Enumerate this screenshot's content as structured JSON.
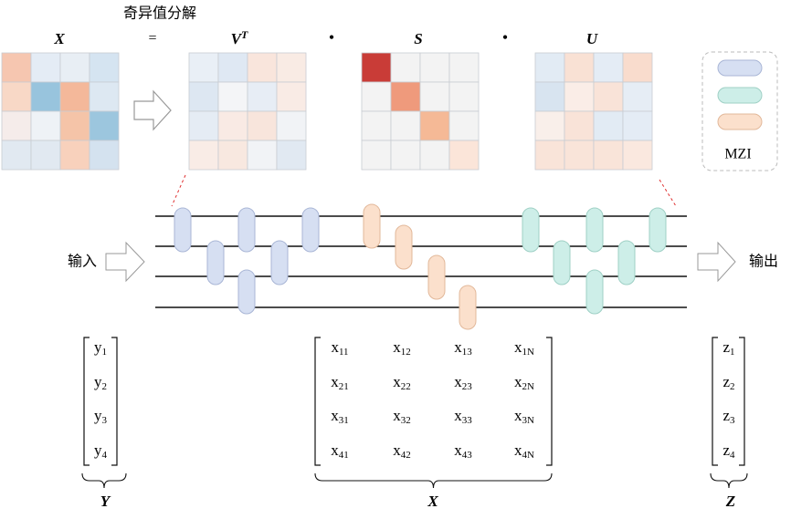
{
  "title": "奇异值分解",
  "equation": {
    "lhs": "X",
    "equals": "=",
    "vt": {
      "base": "V",
      "sup": "T"
    },
    "dot1": "•",
    "s": "S",
    "dot2": "•",
    "u": "U"
  },
  "legend": {
    "label": "MZI"
  },
  "input": "输入",
  "output": "输出",
  "vector_y": {
    "entries": [
      {
        "base": "y",
        "sub": "1"
      },
      {
        "base": "y",
        "sub": "2"
      },
      {
        "base": "y",
        "sub": "3"
      },
      {
        "base": "y",
        "sub": "4"
      }
    ],
    "label": "Y"
  },
  "matrix_x": {
    "rows": [
      [
        {
          "base": "x",
          "sub": "11"
        },
        {
          "base": "x",
          "sub": "12"
        },
        {
          "base": "x",
          "sub": "13"
        },
        {
          "base": "x",
          "sub": "1N"
        }
      ],
      [
        {
          "base": "x",
          "sub": "21"
        },
        {
          "base": "x",
          "sub": "22"
        },
        {
          "base": "x",
          "sub": "23"
        },
        {
          "base": "x",
          "sub": "2N"
        }
      ],
      [
        {
          "base": "x",
          "sub": "31"
        },
        {
          "base": "x",
          "sub": "32"
        },
        {
          "base": "x",
          "sub": "33"
        },
        {
          "base": "x",
          "sub": "3N"
        }
      ],
      [
        {
          "base": "x",
          "sub": "41"
        },
        {
          "base": "x",
          "sub": "42"
        },
        {
          "base": "x",
          "sub": "43"
        },
        {
          "base": "x",
          "sub": "4N"
        }
      ]
    ],
    "label": "X"
  },
  "vector_z": {
    "entries": [
      {
        "base": "z",
        "sub": "1"
      },
      {
        "base": "z",
        "sub": "2"
      },
      {
        "base": "z",
        "sub": "3"
      },
      {
        "base": "z",
        "sub": "4"
      }
    ],
    "label": "Z"
  }
}
